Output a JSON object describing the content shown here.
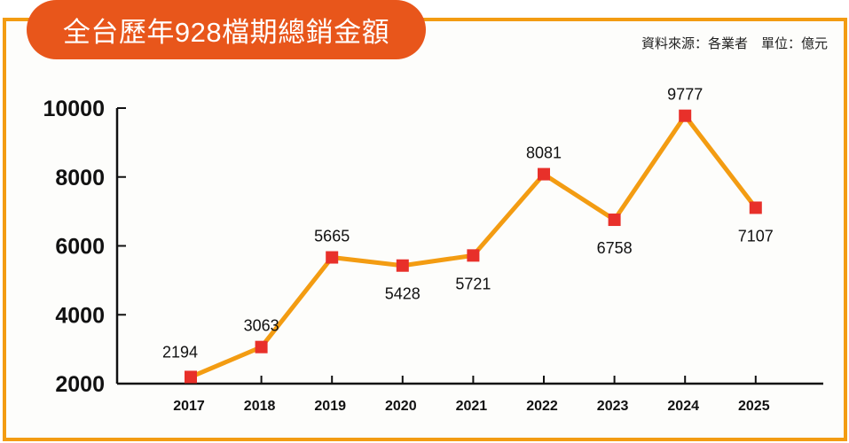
{
  "header": {
    "title": "全台歷年928檔期總銷金額",
    "source": "資料來源：各業者　單位：億元"
  },
  "colors": {
    "frame": "#F39C12",
    "title_bg": "#E8561B",
    "line": "#F39C12",
    "marker": "#E8302A"
  },
  "chart_data": {
    "type": "line",
    "title": "全台歷年928檔期總銷金額",
    "xlabel": "",
    "ylabel": "億元",
    "categories": [
      "2017",
      "2018",
      "2019",
      "2020",
      "2021",
      "2022",
      "2023",
      "2024",
      "2025"
    ],
    "values": [
      2194,
      3063,
      5665,
      5428,
      5721,
      8081,
      6758,
      9777,
      7107
    ],
    "label_position": [
      "above",
      "above",
      "above",
      "below",
      "below",
      "above",
      "below",
      "above",
      "below"
    ],
    "yticks": [
      "2000",
      "4000",
      "6000",
      "8000",
      "10000"
    ],
    "ylim": [
      2000,
      10000
    ],
    "grid": false,
    "legend": "none"
  }
}
